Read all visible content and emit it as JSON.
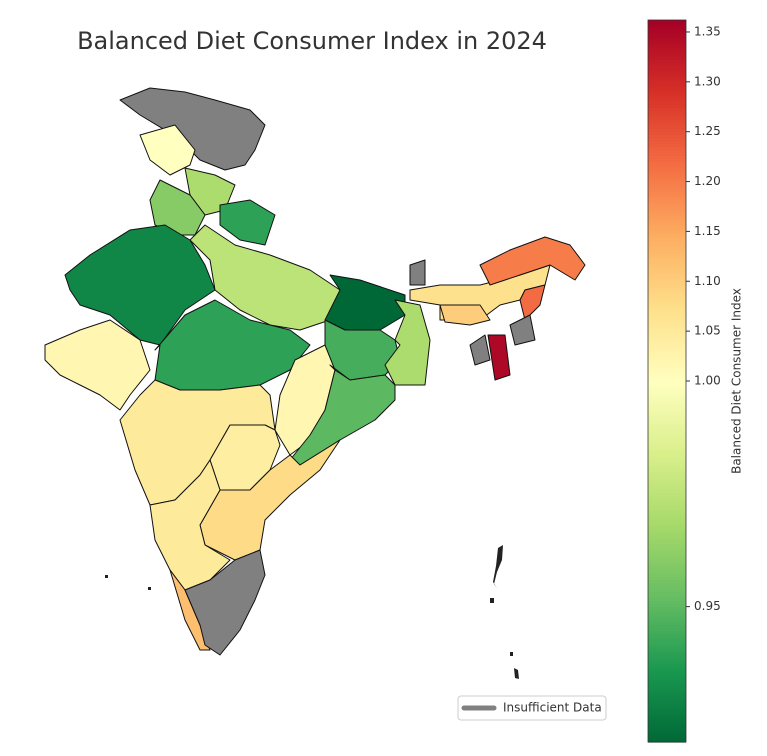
{
  "chart_data": {
    "type": "choropleth",
    "title": "Balanced Diet Consumer Index in 2024",
    "values": [
      null,
      1.0,
      0.97,
      0.96,
      0.94,
      0.93,
      0.975,
      0.92,
      1.02,
      0.94,
      1.02,
      0.945,
      0.97,
      0.95,
      1.05,
      1.04,
      1.08,
      1.05,
      1.12,
      null,
      null,
      1.07,
      1.2,
      1.22,
      1.1,
      null,
      1.35,
      null
    ],
    "missing_color": "#808080",
    "missing_label": "Insufficient Data",
    "colormap": [
      "#006837",
      "#1a9850",
      "#66bd63",
      "#a6d96a",
      "#d9ef8b",
      "#ffffbf",
      "#fee08b",
      "#fdae61",
      "#f46d43",
      "#d73027",
      "#a50026"
    ],
    "colorbar_label": "Balanced Diet Consumer Index",
    "clim": [
      0.92,
      1.362
    ],
    "center": 1.0,
    "cticks": [
      0.95,
      {
        "value": 1.0,
        "label": "1.00"
      },
      1.05,
      {
        "value": 1.1,
        "label": "1.10"
      },
      1.15,
      {
        "value": 1.2,
        "label": "1.20"
      },
      1.25,
      {
        "value": 1.3,
        "label": "1.30"
      },
      1.35
    ]
  }
}
